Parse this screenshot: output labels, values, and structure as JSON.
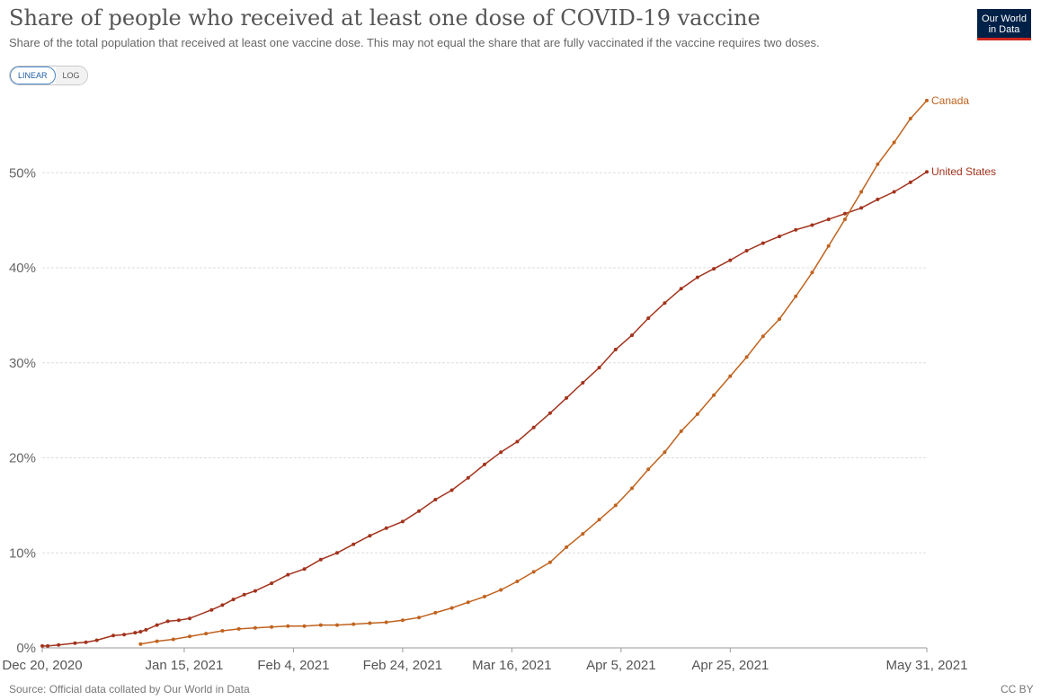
{
  "header": {
    "title": "Share of people who received at least one dose of COVID-19 vaccine",
    "subtitle": "Share of the total population that received at least one vaccine dose. This may not equal the share that are fully vaccinated if the vaccine requires two doses.",
    "logo_line1": "Our World",
    "logo_line2": "in Data"
  },
  "scale_toggle": {
    "linear_label": "LINEAR",
    "log_label": "LOG",
    "selected": "LINEAR"
  },
  "footer": {
    "source": "Source: Official data collated by Our World in Data",
    "license": "CC BY"
  },
  "colors": {
    "united_states": "#a2331d",
    "canada": "#c0631f",
    "grid": "#dddddd"
  },
  "chart_data": {
    "type": "line",
    "title": "Share of people who received at least one dose of COVID-19 vaccine",
    "xlabel": "",
    "ylabel": "",
    "x_range": [
      "2020-12-20",
      "2021-05-31"
    ],
    "ylim": [
      0,
      57.5
    ],
    "y_ticks": [
      0,
      10,
      20,
      30,
      40,
      50
    ],
    "y_tick_labels": [
      "0%",
      "10%",
      "20%",
      "30%",
      "40%",
      "50%"
    ],
    "x_ticks": [
      "2020-12-20",
      "2021-01-15",
      "2021-02-04",
      "2021-02-24",
      "2021-03-16",
      "2021-04-05",
      "2021-04-25",
      "2021-05-31"
    ],
    "x_tick_labels": [
      "Dec 20, 2020",
      "Jan 15, 2021",
      "Feb 4, 2021",
      "Feb 24, 2021",
      "Mar 16, 2021",
      "Apr 5, 2021",
      "Apr 25, 2021",
      "May 31, 2021"
    ],
    "grid": true,
    "legend": "line-end labels",
    "series": [
      {
        "name": "United States",
        "points": [
          [
            "2020-12-20",
            0.2
          ],
          [
            "2020-12-21",
            0.2
          ],
          [
            "2020-12-23",
            0.3
          ],
          [
            "2020-12-26",
            0.5
          ],
          [
            "2020-12-28",
            0.6
          ],
          [
            "2020-12-30",
            0.8
          ],
          [
            "2021-01-02",
            1.3
          ],
          [
            "2021-01-04",
            1.4
          ],
          [
            "2021-01-06",
            1.6
          ],
          [
            "2021-01-07",
            1.7
          ],
          [
            "2021-01-08",
            1.9
          ],
          [
            "2021-01-10",
            2.4
          ],
          [
            "2021-01-12",
            2.8
          ],
          [
            "2021-01-14",
            2.9
          ],
          [
            "2021-01-16",
            3.1
          ],
          [
            "2021-01-20",
            4.0
          ],
          [
            "2021-01-22",
            4.5
          ],
          [
            "2021-01-24",
            5.1
          ],
          [
            "2021-01-26",
            5.6
          ],
          [
            "2021-01-28",
            6.0
          ],
          [
            "2021-01-31",
            6.8
          ],
          [
            "2021-02-03",
            7.7
          ],
          [
            "2021-02-06",
            8.3
          ],
          [
            "2021-02-09",
            9.3
          ],
          [
            "2021-02-12",
            10.0
          ],
          [
            "2021-02-15",
            10.9
          ],
          [
            "2021-02-18",
            11.8
          ],
          [
            "2021-02-21",
            12.6
          ],
          [
            "2021-02-24",
            13.3
          ],
          [
            "2021-02-27",
            14.4
          ],
          [
            "2021-03-02",
            15.6
          ],
          [
            "2021-03-05",
            16.6
          ],
          [
            "2021-03-08",
            17.9
          ],
          [
            "2021-03-11",
            19.3
          ],
          [
            "2021-03-14",
            20.6
          ],
          [
            "2021-03-17",
            21.7
          ],
          [
            "2021-03-20",
            23.2
          ],
          [
            "2021-03-23",
            24.7
          ],
          [
            "2021-03-26",
            26.3
          ],
          [
            "2021-03-29",
            27.9
          ],
          [
            "2021-04-01",
            29.5
          ],
          [
            "2021-04-04",
            31.4
          ],
          [
            "2021-04-07",
            32.9
          ],
          [
            "2021-04-10",
            34.7
          ],
          [
            "2021-04-13",
            36.3
          ],
          [
            "2021-04-16",
            37.8
          ],
          [
            "2021-04-19",
            39.0
          ],
          [
            "2021-04-22",
            39.9
          ],
          [
            "2021-04-25",
            40.8
          ],
          [
            "2021-04-28",
            41.8
          ],
          [
            "2021-05-01",
            42.6
          ],
          [
            "2021-05-04",
            43.3
          ],
          [
            "2021-05-07",
            44.0
          ],
          [
            "2021-05-10",
            44.5
          ],
          [
            "2021-05-13",
            45.1
          ],
          [
            "2021-05-16",
            45.7
          ],
          [
            "2021-05-19",
            46.3
          ],
          [
            "2021-05-22",
            47.2
          ],
          [
            "2021-05-25",
            48.0
          ],
          [
            "2021-05-28",
            49.0
          ],
          [
            "2021-05-31",
            50.1
          ]
        ]
      },
      {
        "name": "Canada",
        "points": [
          [
            "2021-01-07",
            0.4
          ],
          [
            "2021-01-10",
            0.7
          ],
          [
            "2021-01-13",
            0.9
          ],
          [
            "2021-01-16",
            1.2
          ],
          [
            "2021-01-19",
            1.5
          ],
          [
            "2021-01-22",
            1.8
          ],
          [
            "2021-01-25",
            2.0
          ],
          [
            "2021-01-28",
            2.1
          ],
          [
            "2021-01-31",
            2.2
          ],
          [
            "2021-02-03",
            2.3
          ],
          [
            "2021-02-06",
            2.3
          ],
          [
            "2021-02-09",
            2.4
          ],
          [
            "2021-02-12",
            2.4
          ],
          [
            "2021-02-15",
            2.5
          ],
          [
            "2021-02-18",
            2.6
          ],
          [
            "2021-02-21",
            2.7
          ],
          [
            "2021-02-24",
            2.9
          ],
          [
            "2021-02-27",
            3.2
          ],
          [
            "2021-03-02",
            3.7
          ],
          [
            "2021-03-05",
            4.2
          ],
          [
            "2021-03-08",
            4.8
          ],
          [
            "2021-03-11",
            5.4
          ],
          [
            "2021-03-14",
            6.1
          ],
          [
            "2021-03-17",
            7.0
          ],
          [
            "2021-03-20",
            8.0
          ],
          [
            "2021-03-23",
            9.0
          ],
          [
            "2021-03-26",
            10.6
          ],
          [
            "2021-03-29",
            12.0
          ],
          [
            "2021-04-01",
            13.5
          ],
          [
            "2021-04-04",
            15.0
          ],
          [
            "2021-04-07",
            16.8
          ],
          [
            "2021-04-10",
            18.8
          ],
          [
            "2021-04-13",
            20.6
          ],
          [
            "2021-04-16",
            22.8
          ],
          [
            "2021-04-19",
            24.6
          ],
          [
            "2021-04-22",
            26.6
          ],
          [
            "2021-04-25",
            28.6
          ],
          [
            "2021-04-28",
            30.6
          ],
          [
            "2021-05-01",
            32.8
          ],
          [
            "2021-05-04",
            34.6
          ],
          [
            "2021-05-07",
            37.0
          ],
          [
            "2021-05-10",
            39.5
          ],
          [
            "2021-05-13",
            42.3
          ],
          [
            "2021-05-16",
            45.1
          ],
          [
            "2021-05-19",
            48.0
          ],
          [
            "2021-05-22",
            50.9
          ],
          [
            "2021-05-25",
            53.2
          ],
          [
            "2021-05-28",
            55.7
          ],
          [
            "2021-05-31",
            57.6
          ]
        ]
      }
    ]
  }
}
